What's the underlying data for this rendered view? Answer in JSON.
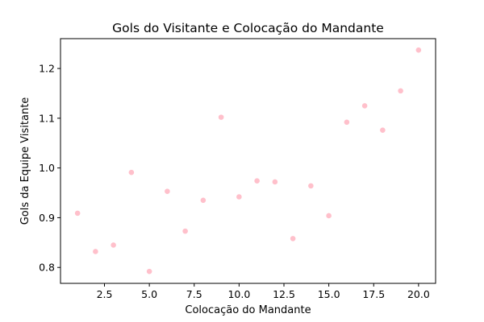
{
  "chart_data": {
    "type": "scatter",
    "title": "Gols do Visitante e Colocação do Mandante",
    "xlabel": "Colocação do Mandante",
    "ylabel": "Gols da Equipe Visitante",
    "xlim": [
      0.05,
      20.95
    ],
    "ylim": [
      0.768,
      1.26
    ],
    "xticks": [
      2.5,
      5.0,
      7.5,
      10.0,
      12.5,
      15.0,
      17.5,
      20.0
    ],
    "xtick_labels": [
      "2.5",
      "5.0",
      "7.5",
      "10.0",
      "12.5",
      "15.0",
      "17.5",
      "20.0"
    ],
    "yticks": [
      0.8,
      0.9,
      1.0,
      1.1,
      1.2
    ],
    "ytick_labels": [
      "0.8",
      "0.9",
      "1.0",
      "1.1",
      "1.2"
    ],
    "grid": false,
    "marker_color": "#ffc0cb",
    "points": [
      {
        "x": 1,
        "y": 0.909
      },
      {
        "x": 2,
        "y": 0.832
      },
      {
        "x": 3,
        "y": 0.845
      },
      {
        "x": 4,
        "y": 0.991
      },
      {
        "x": 5,
        "y": 0.792
      },
      {
        "x": 6,
        "y": 0.953
      },
      {
        "x": 7,
        "y": 0.873
      },
      {
        "x": 8,
        "y": 0.935
      },
      {
        "x": 9,
        "y": 1.102
      },
      {
        "x": 10,
        "y": 0.942
      },
      {
        "x": 11,
        "y": 0.974
      },
      {
        "x": 12,
        "y": 0.972
      },
      {
        "x": 13,
        "y": 0.858
      },
      {
        "x": 14,
        "y": 0.964
      },
      {
        "x": 15,
        "y": 0.904
      },
      {
        "x": 16,
        "y": 1.092
      },
      {
        "x": 17,
        "y": 1.125
      },
      {
        "x": 18,
        "y": 1.076
      },
      {
        "x": 19,
        "y": 1.155
      },
      {
        "x": 20,
        "y": 1.237
      }
    ]
  }
}
